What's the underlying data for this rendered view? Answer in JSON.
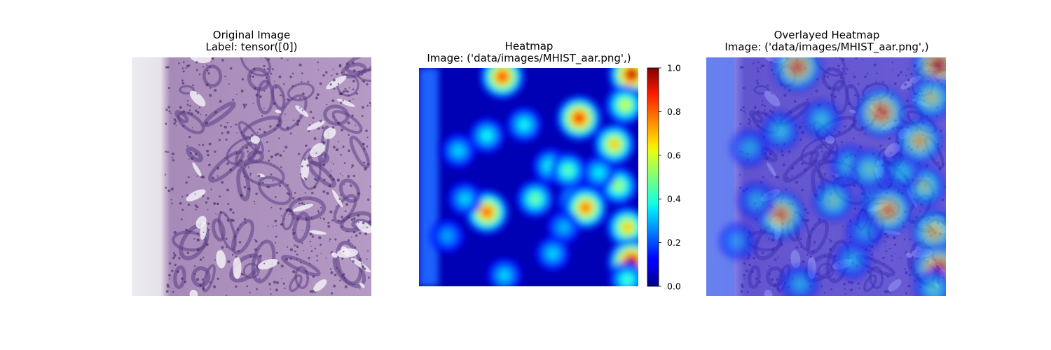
{
  "chart_data": [
    {
      "type": "image",
      "title_line1": "Original Image",
      "title_line2": "Label: tensor([0])"
    },
    {
      "type": "heatmap",
      "title_line1": "Heatmap",
      "title_line2": "Image: ('data/images/MHIST_aar.png',)",
      "colormap": "jet",
      "colorbar": {
        "range": [
          0.0,
          1.0
        ],
        "ticks": [
          "0.0",
          "0.2",
          "0.4",
          "0.6",
          "0.8",
          "1.0"
        ]
      },
      "hotspots": [
        {
          "x": 0.38,
          "y": 0.04,
          "v": 0.85
        },
        {
          "x": 0.97,
          "y": 0.03,
          "v": 0.95
        },
        {
          "x": 0.73,
          "y": 0.23,
          "v": 0.88
        },
        {
          "x": 0.94,
          "y": 0.17,
          "v": 0.6
        },
        {
          "x": 0.48,
          "y": 0.26,
          "v": 0.4
        },
        {
          "x": 0.31,
          "y": 0.31,
          "v": 0.4
        },
        {
          "x": 0.89,
          "y": 0.35,
          "v": 0.7
        },
        {
          "x": 0.91,
          "y": 0.54,
          "v": 0.55
        },
        {
          "x": 0.18,
          "y": 0.38,
          "v": 0.35
        },
        {
          "x": 0.6,
          "y": 0.45,
          "v": 0.42
        },
        {
          "x": 0.68,
          "y": 0.47,
          "v": 0.48
        },
        {
          "x": 0.82,
          "y": 0.48,
          "v": 0.38
        },
        {
          "x": 0.53,
          "y": 0.6,
          "v": 0.5
        },
        {
          "x": 0.72,
          "y": 0.61,
          "v": 0.55
        },
        {
          "x": 0.76,
          "y": 0.64,
          "v": 0.8
        },
        {
          "x": 0.31,
          "y": 0.66,
          "v": 0.82
        },
        {
          "x": 0.21,
          "y": 0.6,
          "v": 0.35
        },
        {
          "x": 0.66,
          "y": 0.73,
          "v": 0.32
        },
        {
          "x": 0.95,
          "y": 0.73,
          "v": 0.7
        },
        {
          "x": 0.13,
          "y": 0.77,
          "v": 0.3
        },
        {
          "x": 0.61,
          "y": 0.85,
          "v": 0.35
        },
        {
          "x": 0.39,
          "y": 0.95,
          "v": 0.35
        },
        {
          "x": 0.97,
          "y": 0.89,
          "v": 1.0
        },
        {
          "x": 0.95,
          "y": 0.97,
          "v": 0.45
        }
      ]
    },
    {
      "type": "image",
      "title_line1": "Overlayed Heatmap",
      "title_line2": "Image: ('data/images/MHIST_aar.png',)"
    }
  ]
}
